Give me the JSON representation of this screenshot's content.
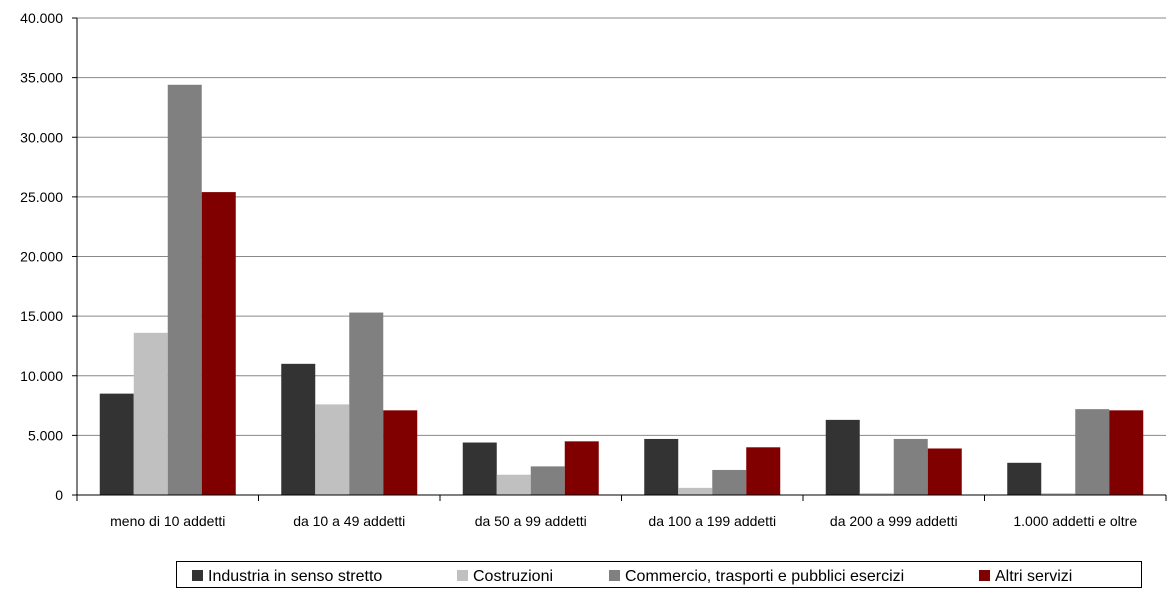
{
  "chart_data": {
    "type": "bar",
    "title": "",
    "xlabel": "",
    "ylabel": "",
    "ylim": [
      0,
      40000
    ],
    "yticks": [
      0,
      5000,
      10000,
      15000,
      20000,
      25000,
      30000,
      35000,
      40000
    ],
    "ytick_labels": [
      "0",
      "5.000",
      "10.000",
      "15.000",
      "20.000",
      "25.000",
      "30.000",
      "35.000",
      "40.000"
    ],
    "grid": true,
    "legend_position": "bottom",
    "categories": [
      "meno di 10 addetti",
      "da 10 a 49 addetti",
      "da 50 a 99 addetti",
      "da 100 a 199 addetti",
      "da 200 a 999 addetti",
      "1.000 addetti e oltre"
    ],
    "series": [
      {
        "name": "Industria in senso stretto",
        "color": "#333333",
        "values": [
          8500,
          11000,
          4400,
          4700,
          6300,
          2700
        ]
      },
      {
        "name": "Costruzioni",
        "color": "#c0c0c0",
        "values": [
          13600,
          7600,
          1700,
          600,
          150,
          150
        ]
      },
      {
        "name": "Commercio, trasporti e pubblici esercizi",
        "color": "#808080",
        "values": [
          34400,
          15300,
          2400,
          2100,
          4700,
          7200
        ]
      },
      {
        "name": "Altri servizi",
        "color": "#800000",
        "values": [
          25400,
          7100,
          4500,
          4000,
          3900,
          7100
        ]
      }
    ]
  }
}
